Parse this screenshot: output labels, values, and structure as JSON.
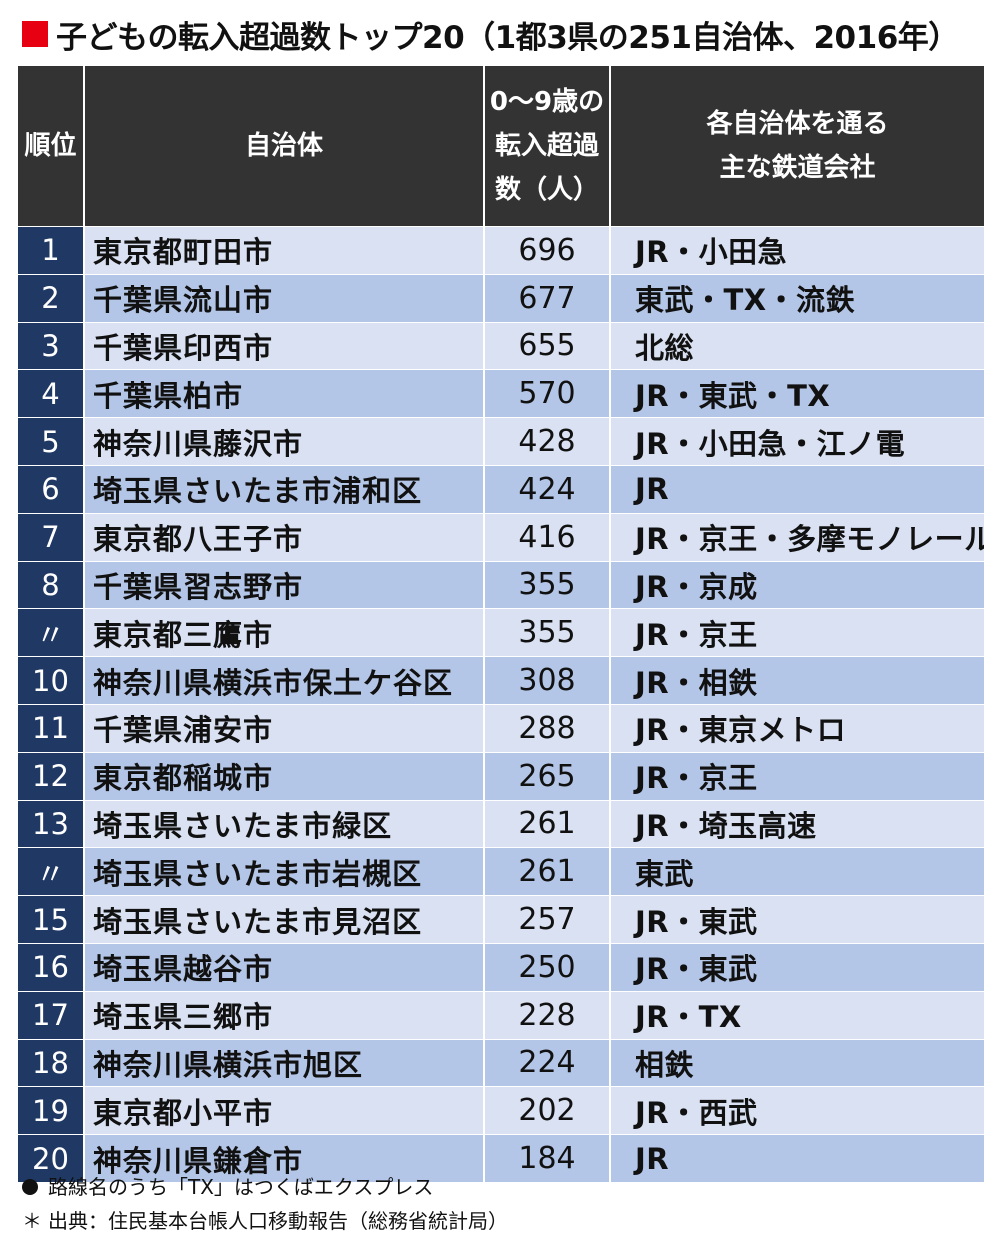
{
  "colors": {
    "title_square": "#e60012",
    "header_bg": "#333333",
    "rank_bg": "#1f3864",
    "row_light": "#d9e1f2",
    "row_dark": "#b4c6e7"
  },
  "title": "子どもの転入超過数トップ20（1都3県の251自治体、2016年）",
  "chart_data": {
    "type": "table",
    "title": "子どもの転入超過数トップ20（1都3県の251自治体、2016年）",
    "header": {
      "rank": "順位",
      "municipality": "自治体",
      "count_lines": [
        "0～9歳の",
        "転入超過",
        "数（人）"
      ],
      "rail_lines": [
        "各自治体を通る",
        "主な鉄道会社"
      ]
    },
    "rows": [
      {
        "rank": "1",
        "municipality": "東京都町田市",
        "count": "696",
        "railways": "JR・小田急"
      },
      {
        "rank": "2",
        "municipality": "千葉県流山市",
        "count": "677",
        "railways": "東武・TX・流鉄"
      },
      {
        "rank": "3",
        "municipality": "千葉県印西市",
        "count": "655",
        "railways": "北総"
      },
      {
        "rank": "4",
        "municipality": "千葉県柏市",
        "count": "570",
        "railways": "JR・東武・TX"
      },
      {
        "rank": "5",
        "municipality": "神奈川県藤沢市",
        "count": "428",
        "railways": "JR・小田急・江ノ電"
      },
      {
        "rank": "6",
        "municipality": "埼玉県さいたま市浦和区",
        "count": "424",
        "railways": "JR"
      },
      {
        "rank": "7",
        "municipality": "東京都八王子市",
        "count": "416",
        "railways": "JR・京王・多摩モノレール"
      },
      {
        "rank": "8",
        "municipality": "千葉県習志野市",
        "count": "355",
        "railways": "JR・京成"
      },
      {
        "rank": "〃",
        "municipality": "東京都三鷹市",
        "count": "355",
        "railways": "JR・京王"
      },
      {
        "rank": "10",
        "municipality": "神奈川県横浜市保土ケ谷区",
        "count": "308",
        "railways": "JR・相鉄"
      },
      {
        "rank": "11",
        "municipality": "千葉県浦安市",
        "count": "288",
        "railways": "JR・東京メトロ"
      },
      {
        "rank": "12",
        "municipality": "東京都稲城市",
        "count": "265",
        "railways": "JR・京王"
      },
      {
        "rank": "13",
        "municipality": "埼玉県さいたま市緑区",
        "count": "261",
        "railways": "JR・埼玉高速"
      },
      {
        "rank": "〃",
        "municipality": "埼玉県さいたま市岩槻区",
        "count": "261",
        "railways": "東武"
      },
      {
        "rank": "15",
        "municipality": "埼玉県さいたま市見沼区",
        "count": "257",
        "railways": "JR・東武"
      },
      {
        "rank": "16",
        "municipality": "埼玉県越谷市",
        "count": "250",
        "railways": "JR・東武"
      },
      {
        "rank": "17",
        "municipality": "埼玉県三郷市",
        "count": "228",
        "railways": "JR・TX"
      },
      {
        "rank": "18",
        "municipality": "神奈川県横浜市旭区",
        "count": "224",
        "railways": "相鉄"
      },
      {
        "rank": "19",
        "municipality": "東京都小平市",
        "count": "202",
        "railways": "JR・西武"
      },
      {
        "rank": "20",
        "municipality": "神奈川県鎌倉市",
        "count": "184",
        "railways": "JR"
      }
    ]
  },
  "notes": {
    "note1": "路線名のうち「TX」はつくばエクスプレス",
    "note2_mark": "＊",
    "note2": "出典：住民基本台帳人口移動報告（総務省統計局）"
  }
}
